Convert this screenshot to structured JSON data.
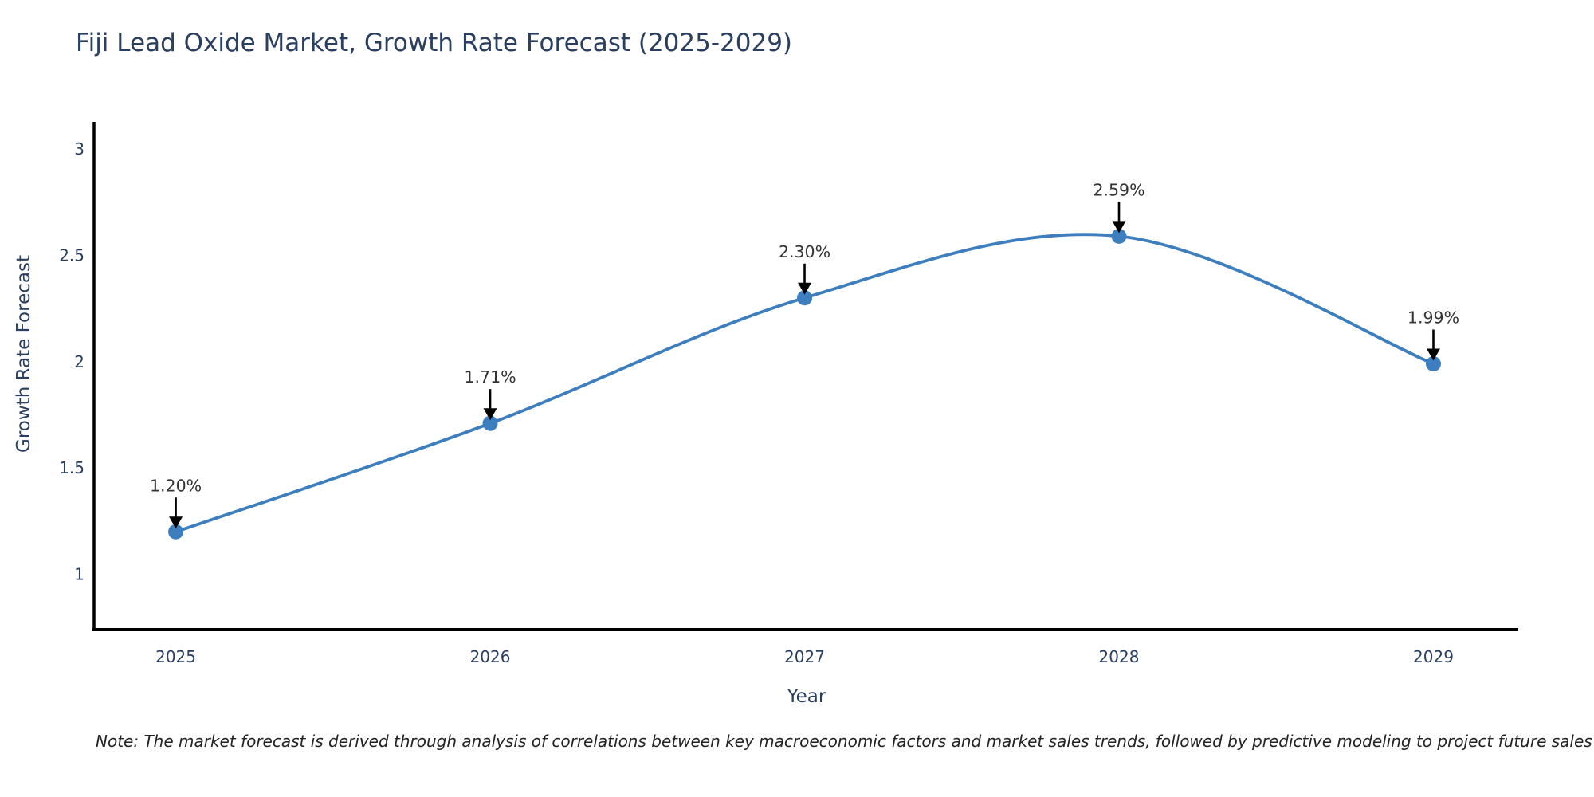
{
  "title": "Fiji Lead Oxide Market, Growth Rate Forecast (2025-2029)",
  "note": "Note: The market forecast is derived through analysis of correlations between key macroeconomic factors and market sales trends, followed by predictive modeling to project future sales",
  "chart_data": {
    "type": "line",
    "line_shape": "spline",
    "x": [
      2025,
      2026,
      2027,
      2028,
      2029
    ],
    "categories": [
      "2025",
      "2026",
      "2027",
      "2028",
      "2029"
    ],
    "series": [
      {
        "name": "Growth Rate Forecast",
        "values": [
          1.2,
          1.71,
          2.3,
          2.59,
          1.99
        ]
      }
    ],
    "point_labels": [
      "1.20%",
      "1.71%",
      "2.30%",
      "2.59%",
      "1.99%"
    ],
    "xlabel": "Year",
    "ylabel": "Growth Rate Forecast",
    "yticks": [
      1,
      1.5,
      2,
      2.5,
      3
    ],
    "ytick_labels": [
      "1",
      "1.5",
      "2",
      "2.5",
      "3"
    ],
    "xlim": [
      2024.74,
      2029.27
    ],
    "ylim": [
      0.74,
      3.12
    ],
    "grid": false,
    "legend_position": "none",
    "colors": {
      "line": "#3d7ebf",
      "marker": "#3d7ebf",
      "axis_line": "#000000",
      "title_text": "#2a3f5f",
      "tick_text": "#2a3f5f",
      "annotation_text": "#333333",
      "arrow": "#000000",
      "note_text": "#222222",
      "background": "#ffffff"
    }
  }
}
